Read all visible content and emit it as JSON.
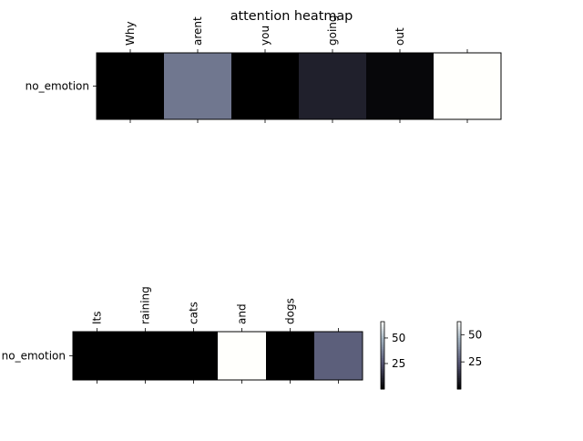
{
  "title": "attention heatmap",
  "chart_data": [
    {
      "type": "heatmap",
      "title": "",
      "row_labels": [
        "no_emotion"
      ],
      "col_labels": [
        "Why",
        "arent",
        "you",
        "going",
        "out",
        ""
      ],
      "values": [
        [
          0,
          32,
          0,
          9,
          2,
          63
        ]
      ],
      "colormap": "bone",
      "vmin": 0,
      "vmax": 63,
      "colorbar_ticks": [
        25,
        50
      ]
    },
    {
      "type": "heatmap",
      "title": "",
      "row_labels": [
        "no_emotion"
      ],
      "col_labels": [
        "Its",
        "raining",
        "cats",
        "and",
        "dogs",
        ""
      ],
      "values": [
        [
          0,
          0,
          0,
          60,
          0,
          25
        ]
      ],
      "colormap": "bone",
      "vmin": 0,
      "vmax": 60,
      "colorbar_ticks": [
        25,
        50
      ]
    }
  ],
  "colorbars": [
    {
      "ticks": [
        "25",
        "50"
      ]
    },
    {
      "ticks": [
        "25",
        "50"
      ]
    }
  ]
}
